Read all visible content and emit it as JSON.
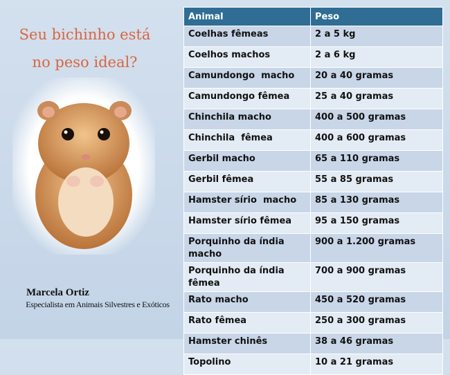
{
  "slide": {
    "title_lines": [
      "Seu bichinho está",
      "no peso ideal?"
    ],
    "author": "Marcela Ortiz",
    "author_role": "Especialista em Animais Silvestres e Exóticos"
  },
  "table": {
    "header": [
      "Animal",
      "Peso"
    ],
    "rows": [
      [
        "Coelhas fêmeas",
        "2 a 5 kg"
      ],
      [
        "Coelhos machos",
        "2 a 6 kg"
      ],
      [
        "Camundongo  macho",
        "20 a 40 gramas"
      ],
      [
        "Camundongo fêmea",
        "25 a 40 gramas"
      ],
      [
        "Chinchila macho",
        "400 a 500 gramas"
      ],
      [
        "Chinchila  fêmea",
        "400 a 600 gramas"
      ],
      [
        "Gerbil macho",
        "65 a 110 gramas"
      ],
      [
        "Gerbil fêmea",
        "55 a 85 gramas"
      ],
      [
        "Hamster sírio  macho",
        "85 a 130 gramas"
      ],
      [
        "Hamster sírio fêmea",
        "95 a 150 gramas"
      ],
      [
        "Porquinho da índia macho",
        "900 a 1.200 gramas"
      ],
      [
        "Porquinho da índia fêmea",
        "700 a 900 gramas"
      ],
      [
        "Rato macho",
        "450 a 520 gramas"
      ],
      [
        "Rato fêmea",
        "250 a 300 gramas"
      ],
      [
        "Hamster chinês",
        "38 a 46 gramas"
      ],
      [
        "Topolino",
        "10 a 21 gramas"
      ]
    ]
  }
}
